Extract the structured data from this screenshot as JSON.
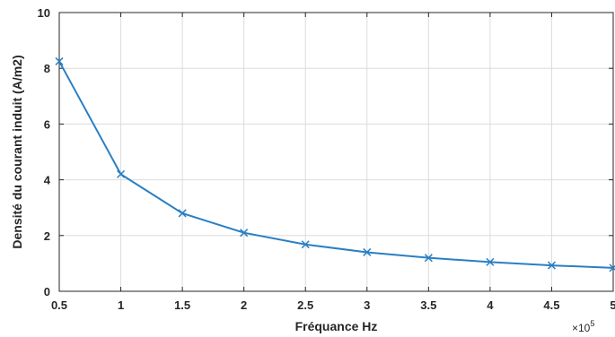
{
  "chart_data": {
    "type": "line",
    "xlabel": "Fréquance Hz",
    "ylabel": "Densité du courant induit (A/m2)",
    "x_multiplier_label": "×10",
    "x_multiplier_exponent": "5",
    "xlim": [
      0.5,
      5
    ],
    "ylim": [
      0,
      10
    ],
    "x_ticks": [
      "0.5",
      "1",
      "1.5",
      "2",
      "2.5",
      "3",
      "3.5",
      "4",
      "4.5",
      "5"
    ],
    "y_ticks": [
      "0",
      "2",
      "4",
      "6",
      "8",
      "10"
    ],
    "grid": true,
    "marker": "x",
    "line_color": "#2a7fc4",
    "series": [
      {
        "x": [
          0.5,
          1,
          1.5,
          2,
          2.5,
          3,
          3.5,
          4,
          4.5,
          5
        ],
        "y": [
          8.25,
          4.2,
          2.8,
          2.1,
          1.68,
          1.4,
          1.2,
          1.05,
          0.93,
          0.84
        ]
      }
    ]
  }
}
